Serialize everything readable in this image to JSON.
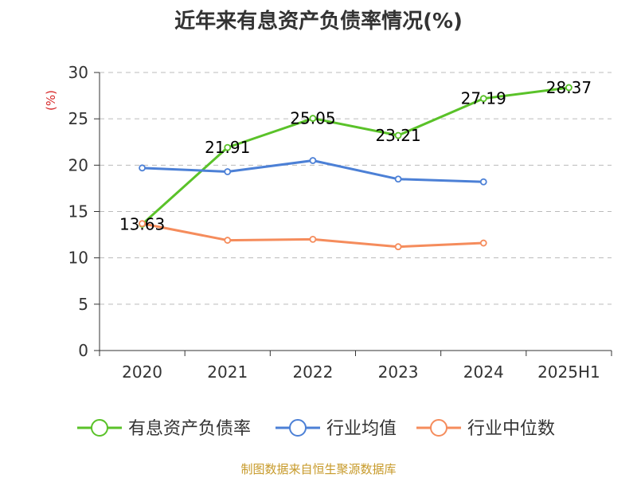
{
  "chart_data": {
    "type": "line",
    "title": "近年来有息资产负债率情况(%)",
    "ylabel": "(%)",
    "categories": [
      "2020",
      "2021",
      "2022",
      "2023",
      "2024",
      "2025H1"
    ],
    "ylim": [
      0,
      30
    ],
    "yticks": [
      0,
      5,
      10,
      15,
      20,
      25,
      30
    ],
    "grid": true,
    "legend_position": "bottom",
    "series": [
      {
        "name": "有息资产负债率",
        "color": "#5ac229",
        "values": [
          13.63,
          21.91,
          25.05,
          23.21,
          27.19,
          28.37
        ],
        "show_labels": true
      },
      {
        "name": "行业均值",
        "color": "#4c80d6",
        "values": [
          19.7,
          19.3,
          20.5,
          18.5,
          18.2,
          null
        ],
        "show_labels": false
      },
      {
        "name": "行业中位数",
        "color": "#f58c5c",
        "values": [
          13.7,
          11.9,
          12.0,
          11.2,
          11.6,
          null
        ],
        "show_labels": false
      }
    ]
  },
  "colors": {
    "ylabel": "#d62728",
    "source": "#c79a2a",
    "axis": "#333333",
    "grid": "#bbbbbb"
  },
  "source_note": "制图数据来自恒生聚源数据库"
}
